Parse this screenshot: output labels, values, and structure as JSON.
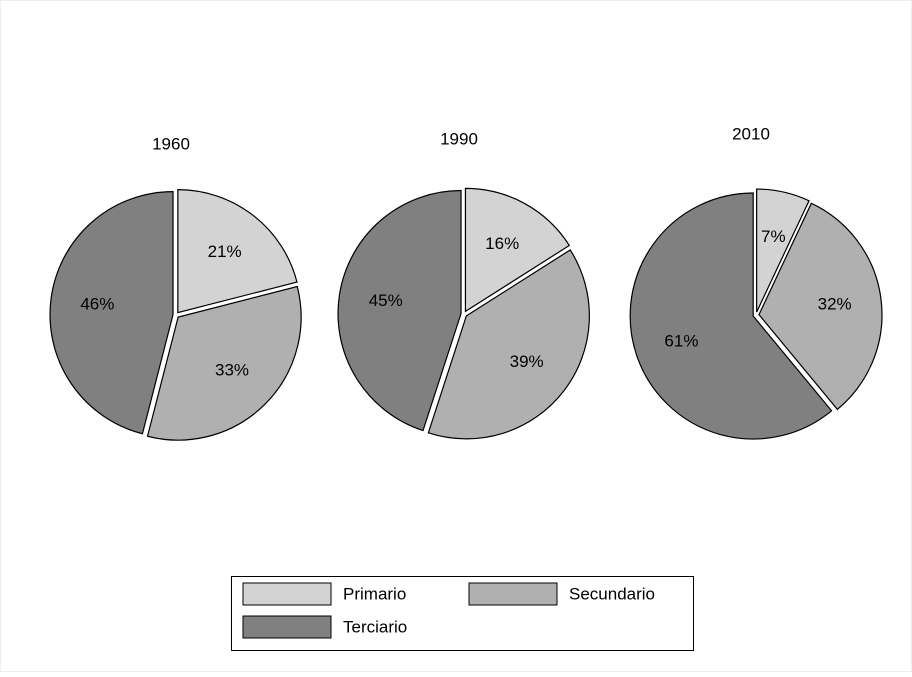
{
  "chart_data": [
    {
      "type": "pie",
      "title": "1960",
      "categories": [
        "Primario",
        "Secundario",
        "Terciario"
      ],
      "values": [
        21,
        33,
        46
      ],
      "value_labels": [
        "21%",
        "33%",
        "46%"
      ],
      "colors": [
        "#d3d3d3",
        "#b0b0b0",
        "#808080"
      ]
    },
    {
      "type": "pie",
      "title": "1990",
      "categories": [
        "Primario",
        "Secundario",
        "Terciario"
      ],
      "values": [
        16,
        39,
        45
      ],
      "value_labels": [
        "16%",
        "39%",
        "45%"
      ],
      "colors": [
        "#d3d3d3",
        "#b0b0b0",
        "#808080"
      ]
    },
    {
      "type": "pie",
      "title": "2010",
      "categories": [
        "Primario",
        "Secundario",
        "Terciario"
      ],
      "values": [
        7,
        32,
        61
      ],
      "value_labels": [
        "7%",
        "32%",
        "61%"
      ],
      "colors": [
        "#d3d3d3",
        "#b0b0b0",
        "#808080"
      ]
    }
  ]
}
